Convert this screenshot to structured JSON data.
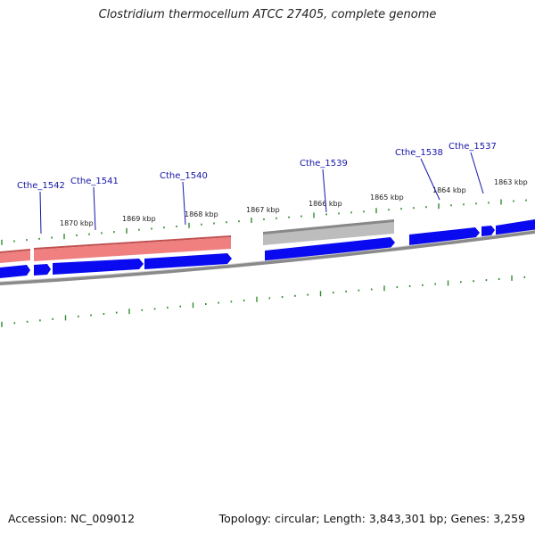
{
  "title": "Clostridium thermocellum ATCC 27405, complete genome",
  "accession": "Accession: NC_009012",
  "topology": "Topology: circular; Length: 3,843,301 bp; Genes: 3,259",
  "colors": {
    "cds": "#0a0af0",
    "rrna": "#f08080",
    "rrna_edge": "#c05050",
    "other_gene": "#bdbdbd",
    "other_gene_edge": "#888888",
    "backbone": "#8a8a8a",
    "ticks": "#2e8b2e",
    "labels": "#1515a8"
  },
  "kbp_ticks": [
    "1870 kbp",
    "1869 kbp",
    "1868 kbp",
    "1867 kbp",
    "1866 kbp",
    "1865 kbp",
    "1864 kbp",
    "1863 kbp"
  ],
  "gene_labels": [
    "Cthe_1542",
    "Cthe_1541",
    "Cthe_1540",
    "Cthe_1539",
    "Cthe_1538",
    "Cthe_1537"
  ]
}
